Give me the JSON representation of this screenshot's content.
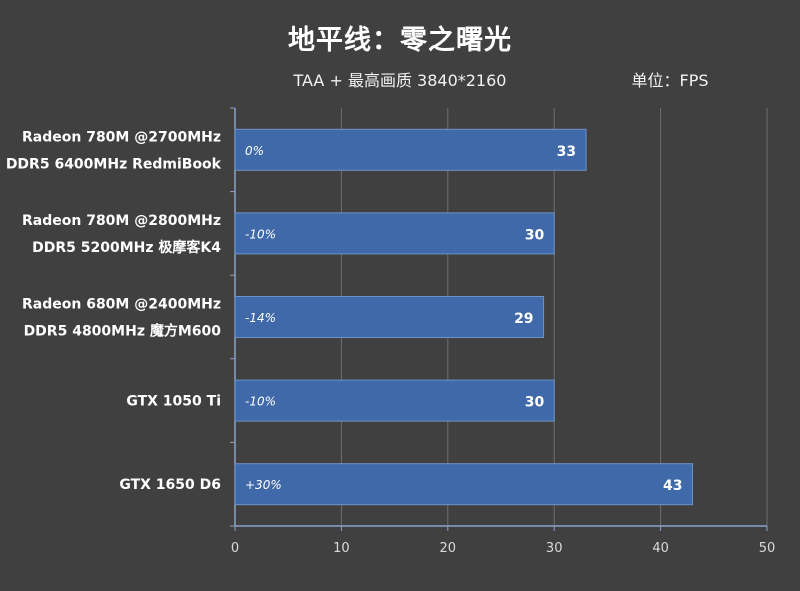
{
  "title": "地平线：零之曙光",
  "subtitle": "TAA + 最高画质 3840*2160",
  "unit_label": "单位：FPS",
  "colors": {
    "background": "#404040",
    "bar_fill": "#3f69a8",
    "bar_stroke": "#6f93c8",
    "grid": "#6e6e6e",
    "axis": "#8aa2c8"
  },
  "chart_data": {
    "type": "bar",
    "orientation": "horizontal",
    "categories": [
      [
        "Radeon 780M @2700MHz",
        "DDR5 6400MHz RedmiBook"
      ],
      [
        "Radeon 780M @2800MHz",
        "DDR5 5200MHz 极摩客K4"
      ],
      [
        "Radeon 680M @2400MHz",
        "DDR5 4800MHz 魔方M600"
      ],
      [
        "GTX 1050 Ti"
      ],
      [
        "GTX 1650 D6"
      ]
    ],
    "values": [
      33,
      30,
      29,
      30,
      43
    ],
    "relative_labels": [
      "0%",
      "-10%",
      "-14%",
      "-10%",
      "+30%"
    ],
    "xlim": [
      0,
      50
    ],
    "xticks": [
      0,
      10,
      20,
      30,
      40,
      50
    ],
    "grid": true
  }
}
